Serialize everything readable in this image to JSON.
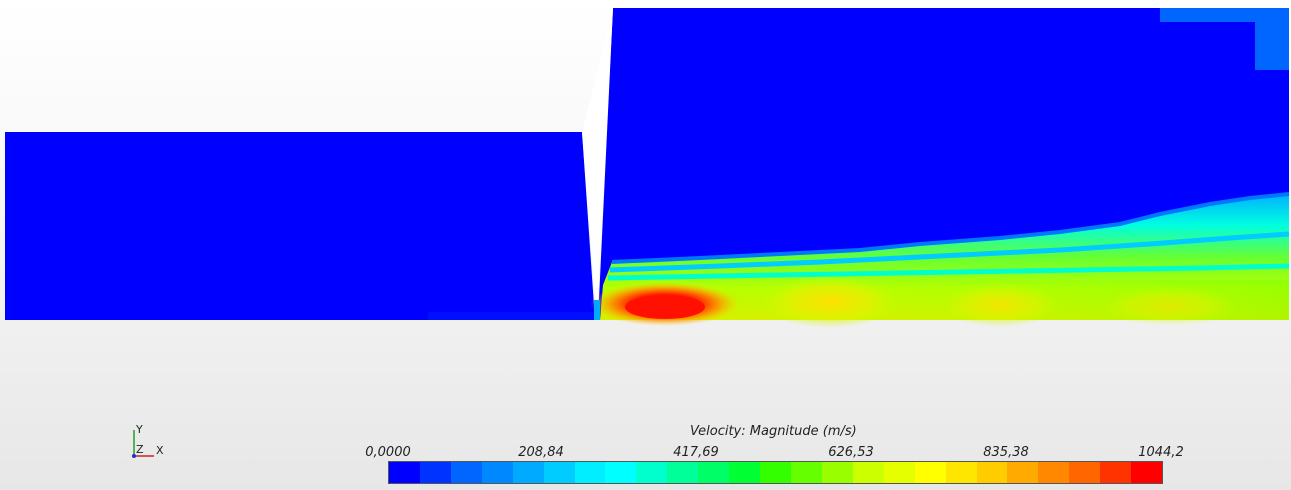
{
  "legend": {
    "title": "Velocity: Magnitude (m/s)",
    "ticks": [
      "0,0000",
      "208,84",
      "417,69",
      "626,53",
      "835,38",
      "1044,2"
    ],
    "min": 0,
    "max": 1044.2,
    "colors": [
      "#0000ff",
      "#0033ff",
      "#0066ff",
      "#0088ff",
      "#00aaff",
      "#00ccff",
      "#00eeff",
      "#00ffff",
      "#00ffcc",
      "#00ff99",
      "#00ff66",
      "#00ff33",
      "#33ff00",
      "#66ff00",
      "#99ff00",
      "#ccff00",
      "#e6ff00",
      "#ffff00",
      "#ffe600",
      "#ffcc00",
      "#ffaa00",
      "#ff8800",
      "#ff6600",
      "#ff3300",
      "#ff0000"
    ]
  },
  "triad": {
    "y": "Y",
    "z": "Z",
    "x": "X"
  },
  "colors": {
    "domain": "#0000ff",
    "background": "#f2f2f2"
  }
}
